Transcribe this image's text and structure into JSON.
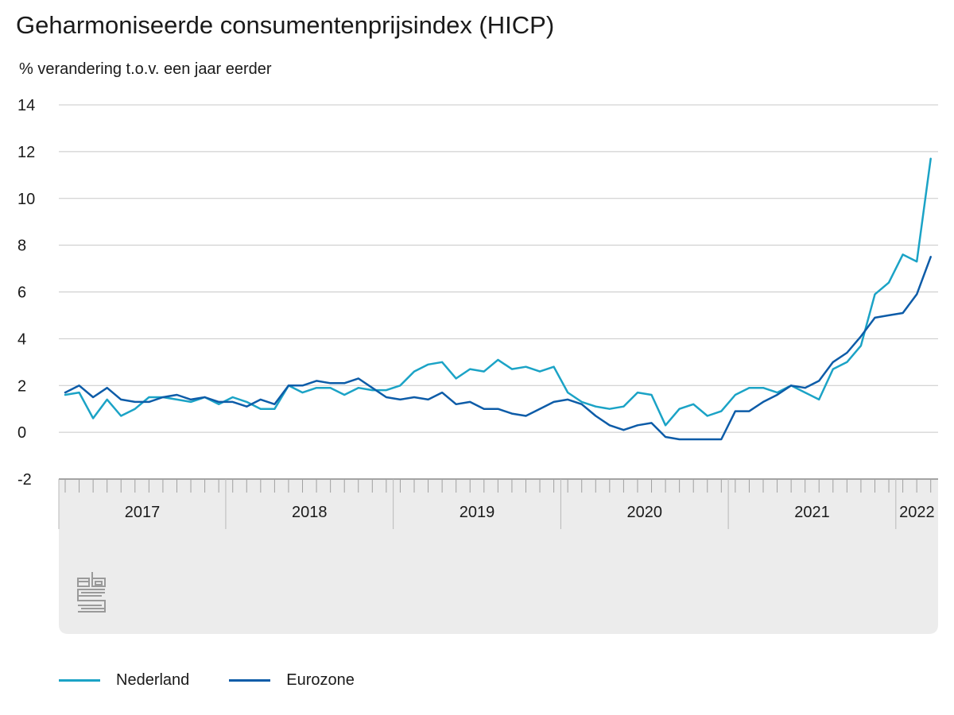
{
  "title": "Geharmoniseerde consumentenprijsindex (HICP)",
  "subtitle": "% verandering t.o.v. een jaar eerder",
  "colors": {
    "nederland": "#1ba3c6",
    "eurozone": "#0d5ca8",
    "grid": "#c8c8c8",
    "axis_band": "#ececec"
  },
  "logo_icon": "cbs-logo-icon",
  "chart_data": {
    "type": "line",
    "title": "Geharmoniseerde consumentenprijsindex (HICP)",
    "ylabel": "% verandering t.o.v. een jaar eerder",
    "ylim": [
      -2,
      14
    ],
    "yticks": [
      -2,
      0,
      2,
      4,
      6,
      8,
      10,
      12,
      14
    ],
    "x_start": "2017-01",
    "x_end": "2022-03",
    "year_labels": [
      "2017",
      "2018",
      "2019",
      "2020",
      "2021",
      "2022"
    ],
    "grid": true,
    "legend_position": "bottom",
    "series": [
      {
        "name": "Nederland",
        "values": [
          1.6,
          1.7,
          0.6,
          1.4,
          0.7,
          1.0,
          1.5,
          1.5,
          1.4,
          1.3,
          1.5,
          1.2,
          1.5,
          1.3,
          1.0,
          1.0,
          2.0,
          1.7,
          1.9,
          1.9,
          1.6,
          1.9,
          1.8,
          1.8,
          2.0,
          2.6,
          2.9,
          3.0,
          2.3,
          2.7,
          2.6,
          3.1,
          2.7,
          2.8,
          2.6,
          2.8,
          1.7,
          1.3,
          1.1,
          1.0,
          1.1,
          1.7,
          1.6,
          0.3,
          1.0,
          1.2,
          0.7,
          0.9,
          1.6,
          1.9,
          1.9,
          1.7,
          2.0,
          1.7,
          1.4,
          2.7,
          3.0,
          3.7,
          5.9,
          6.4,
          7.6,
          7.3,
          11.7
        ]
      },
      {
        "name": "Eurozone",
        "values": [
          1.7,
          2.0,
          1.5,
          1.9,
          1.4,
          1.3,
          1.3,
          1.5,
          1.6,
          1.4,
          1.5,
          1.3,
          1.3,
          1.1,
          1.4,
          1.2,
          2.0,
          2.0,
          2.2,
          2.1,
          2.1,
          2.3,
          1.9,
          1.5,
          1.4,
          1.5,
          1.4,
          1.7,
          1.2,
          1.3,
          1.0,
          1.0,
          0.8,
          0.7,
          1.0,
          1.3,
          1.4,
          1.2,
          0.7,
          0.3,
          0.1,
          0.3,
          0.4,
          -0.2,
          -0.3,
          -0.3,
          -0.3,
          -0.3,
          0.9,
          0.9,
          1.3,
          1.6,
          2.0,
          1.9,
          2.2,
          3.0,
          3.4,
          4.1,
          4.9,
          5.0,
          5.1,
          5.9,
          7.5
        ]
      }
    ]
  }
}
